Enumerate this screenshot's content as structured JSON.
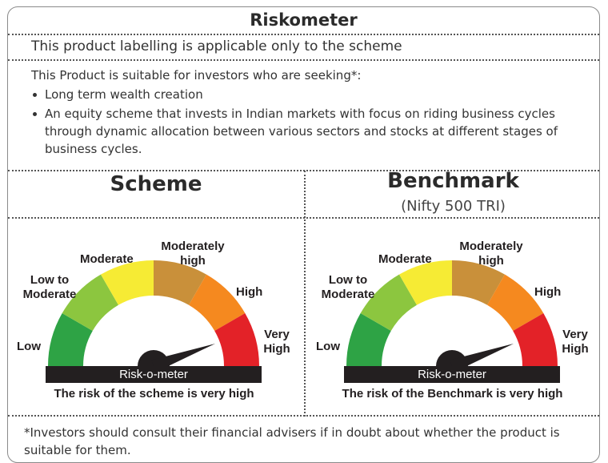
{
  "title": "Riskometer",
  "applicability": "This product labelling is applicable only to the scheme",
  "suitability": {
    "intro": "This Product is suitable for investors who are seeking*:",
    "bullets": [
      "Long term wealth creation",
      "An equity scheme that invests in Indian markets with focus on riding business cycles through dynamic allocation between various sectors and stocks at different stages of business cycles."
    ]
  },
  "meter_colors": {
    "low": "#2ea345",
    "low_to_moderate": "#8cc63f",
    "moderate": "#f6eb34",
    "moderately_high": "#c9903a",
    "high": "#f5891f",
    "very_high": "#e32228",
    "bar": "#231f20",
    "needle": "#231f20"
  },
  "risk_levels": [
    "Low",
    "Low to Moderate",
    "Moderate",
    "Moderately high",
    "High",
    "Very High"
  ],
  "scheme": {
    "heading": "Scheme",
    "meter_labels": {
      "low": "Low",
      "low_to_moderate_1": "Low to",
      "low_to_moderate_2": "Moderate",
      "moderate": "Moderate",
      "moderately_high_1": "Moderately",
      "moderately_high_2": "high",
      "high": "High",
      "very_high_1": "Very",
      "very_high_2": "High"
    },
    "bar_label": "Risk-o-meter",
    "needle_level": "Very High",
    "caption": "The risk of the scheme is very high"
  },
  "benchmark": {
    "heading": "Benchmark",
    "subheading": "(Nifty 500 TRI)",
    "meter_labels": {
      "low": "Low",
      "low_to_moderate_1": "Low to",
      "low_to_moderate_2": "Moderate",
      "moderate": "Moderate",
      "moderately_high_1": "Moderately",
      "moderately_high_2": "high",
      "high": "High",
      "very_high_1": "Very",
      "very_high_2": "High"
    },
    "bar_label": "Risk-o-meter",
    "needle_level": "Very High",
    "caption": "The risk of the Benchmark is very high"
  },
  "disclaimer": "*Investors should consult their financial advisers if in doubt about whether the product is suitable for them."
}
